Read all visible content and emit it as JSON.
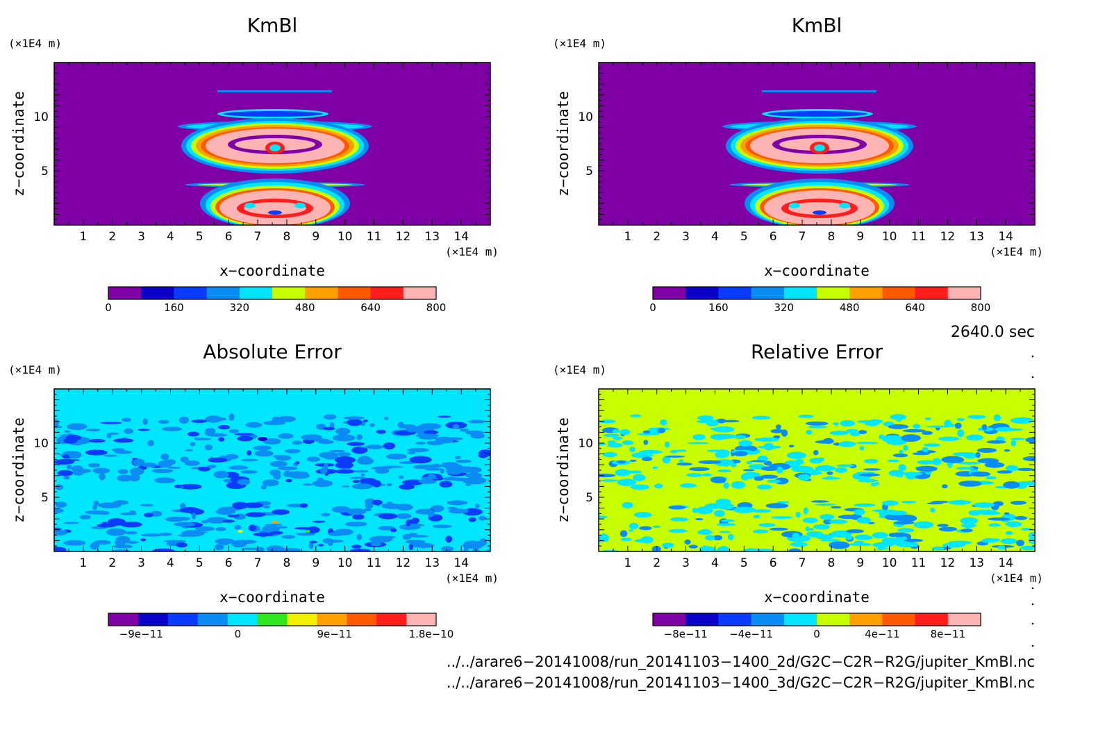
{
  "chart_data": [
    {
      "type": "heatmap",
      "title": "KmBl",
      "xlabel": "x−coordinate",
      "ylabel": "z−coordinate",
      "x_unit": "(×1E4 m)",
      "y_unit": "(×1E4 m)",
      "xlim": [
        0,
        15
      ],
      "ylim": [
        0,
        15
      ],
      "x_ticks": [
        "1",
        "2",
        "3",
        "4",
        "5",
        "6",
        "7",
        "8",
        "9",
        "10",
        "11",
        "12",
        "13",
        "14"
      ],
      "y_ticks": [
        "5",
        "10"
      ],
      "colorbar": {
        "colors": [
          "#7f00a5",
          "#0a00c8",
          "#0a3cff",
          "#0a8cf5",
          "#00e6ff",
          "#c8ff00",
          "#ffa000",
          "#ff5a00",
          "#ff1e1e",
          "#ffb4b4"
        ],
        "tick_labels": [
          "0",
          "160",
          "320",
          "480",
          "640",
          "800"
        ],
        "range": [
          0,
          800
        ]
      }
    },
    {
      "type": "heatmap",
      "title": "KmBl",
      "xlabel": "x−coordinate",
      "ylabel": "z−coordinate",
      "x_unit": "(×1E4 m)",
      "y_unit": "(×1E4 m)",
      "xlim": [
        0,
        15
      ],
      "ylim": [
        0,
        15
      ],
      "x_ticks": [
        "1",
        "2",
        "3",
        "4",
        "5",
        "6",
        "7",
        "8",
        "9",
        "10",
        "11",
        "12",
        "13",
        "14"
      ],
      "y_ticks": [
        "5",
        "10"
      ],
      "colorbar": {
        "colors": [
          "#7f00a5",
          "#0a00c8",
          "#0a3cff",
          "#0a8cf5",
          "#00e6ff",
          "#c8ff00",
          "#ffa000",
          "#ff5a00",
          "#ff1e1e",
          "#ffb4b4"
        ],
        "tick_labels": [
          "0",
          "160",
          "320",
          "480",
          "640",
          "800"
        ],
        "range": [
          0,
          800
        ]
      }
    },
    {
      "type": "heatmap",
      "title": "Absolute Error",
      "xlabel": "x−coordinate",
      "ylabel": "z−coordinate",
      "x_unit": "(×1E4 m)",
      "y_unit": "(×1E4 m)",
      "xlim": [
        0,
        15
      ],
      "ylim": [
        0,
        15
      ],
      "x_ticks": [
        "1",
        "2",
        "3",
        "4",
        "5",
        "6",
        "7",
        "8",
        "9",
        "10",
        "11",
        "12",
        "13",
        "14"
      ],
      "y_ticks": [
        "5",
        "10"
      ],
      "colorbar": {
        "colors": [
          "#7f00a5",
          "#0a00c8",
          "#0a3cff",
          "#0a8cf5",
          "#00e6ff",
          "#30e61e",
          "#f0f000",
          "#ffa000",
          "#ff5a00",
          "#ff1e1e",
          "#ffb4b4"
        ],
        "tick_labels": [
          "−9e−11",
          "0",
          "9e−11",
          "1.8e−10"
        ]
      }
    },
    {
      "type": "heatmap",
      "title": "Relative Error",
      "xlabel": "x−coordinate",
      "ylabel": "z−coordinate",
      "x_unit": "(×1E4 m)",
      "y_unit": "(×1E4 m)",
      "xlim": [
        0,
        15
      ],
      "ylim": [
        0,
        15
      ],
      "x_ticks": [
        "1",
        "2",
        "3",
        "4",
        "5",
        "6",
        "7",
        "8",
        "9",
        "10",
        "11",
        "12",
        "13",
        "14"
      ],
      "y_ticks": [
        "5",
        "10"
      ],
      "colorbar": {
        "colors": [
          "#7f00a5",
          "#0a00c8",
          "#0a3cff",
          "#0a8cf5",
          "#00e6ff",
          "#c8ff00",
          "#ffa000",
          "#ff5a00",
          "#ff1e1e",
          "#ffb4b4"
        ],
        "tick_labels": [
          "−8e−11",
          "−4e−11",
          "0",
          "4e−11",
          "8e−11"
        ]
      }
    }
  ],
  "time_label": "2640.0 sec",
  "footer": {
    "line1": "../../arare6−20141008/run_20141103−1400_2d/G2C−C2R−R2G/jupiter_KmBl.nc",
    "line2": "../../arare6−20141008/run_20141103−1400_3d/G2C−C2R−R2G/jupiter_KmBl.nc"
  }
}
